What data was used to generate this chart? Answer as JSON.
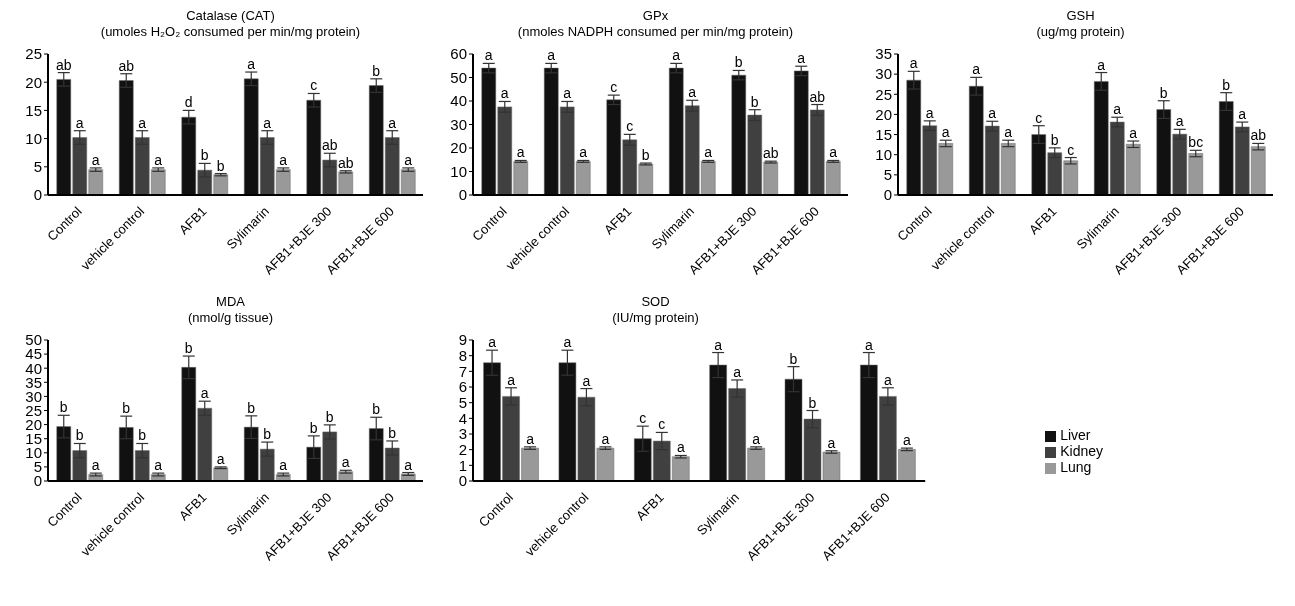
{
  "chart_data": [
    {
      "type": "bar",
      "title": "Catalase (CAT)",
      "subtitle": "(umoles H₂O₂ consumed per min/mg protein)",
      "categories": [
        "Control",
        "vehicle control",
        "AFB1",
        "Sylimarin",
        "AFB1+BJE 300",
        "AFB1+BJE 600"
      ],
      "ylim": [
        0,
        25
      ],
      "yticks": [
        0,
        5,
        10,
        15,
        20,
        25
      ],
      "grid": false,
      "series": [
        {
          "color": "#111111",
          "values": [
            20.5,
            20.3,
            13.8,
            20.6,
            16.8,
            19.4
          ],
          "errors": [
            1.2,
            1.2,
            1.2,
            1.2,
            1.2,
            1.2
          ],
          "value_labels": [
            "ab",
            "ab",
            "d",
            "a",
            "c",
            "b"
          ]
        },
        {
          "color": "#404040",
          "values": [
            10.2,
            10.2,
            4.4,
            10.2,
            6.2,
            10.2
          ],
          "errors": [
            1.2,
            1.2,
            1.2,
            1.2,
            1.2,
            1.2
          ],
          "value_labels": [
            "a",
            "a",
            "b",
            "a",
            "ab",
            "a"
          ]
        },
        {
          "color": "#999999",
          "values": [
            4.5,
            4.5,
            3.6,
            4.5,
            4.1,
            4.5
          ],
          "errors": [
            0.3,
            0.3,
            0.2,
            0.3,
            0.2,
            0.3
          ],
          "value_labels": [
            "a",
            "a",
            "b",
            "a",
            "ab",
            "a"
          ]
        }
      ]
    },
    {
      "type": "bar",
      "title": "GPx",
      "subtitle": "(nmoles NADPH consumed per min/mg protein)",
      "categories": [
        "Control",
        "vehicle control",
        "AFB1",
        "Sylimarin",
        "AFB1+BJE 300",
        "AFB1+BJE 600"
      ],
      "ylim": [
        0,
        60
      ],
      "yticks": [
        0,
        10,
        20,
        30,
        40,
        50,
        60
      ],
      "grid": false,
      "series": [
        {
          "color": "#111111",
          "values": [
            54,
            54,
            40.5,
            54,
            51,
            52.8
          ],
          "errors": [
            2,
            2,
            2,
            2,
            2,
            2
          ],
          "value_labels": [
            "a",
            "a",
            "c",
            "a",
            "b",
            "a"
          ]
        },
        {
          "color": "#404040",
          "values": [
            37.5,
            37.5,
            23.5,
            38,
            34,
            36.2
          ],
          "errors": [
            2.3,
            2.3,
            2.3,
            2.3,
            2.3,
            2.3
          ],
          "value_labels": [
            "a",
            "a",
            "c",
            "a",
            "b",
            "ab"
          ]
        },
        {
          "color": "#999999",
          "values": [
            14.3,
            14.3,
            13.2,
            14.3,
            14,
            14.3
          ],
          "errors": [
            0.4,
            0.4,
            0.4,
            0.4,
            0.4,
            0.4
          ],
          "value_labels": [
            "a",
            "a",
            "b",
            "a",
            "ab",
            "a"
          ]
        }
      ]
    },
    {
      "type": "bar",
      "title": "GSH",
      "subtitle": "(ug/mg protein)",
      "categories": [
        "Control",
        "vehicle control",
        "AFB1",
        "Sylimarin",
        "AFB1+BJE 300",
        "AFB1+BJE 600"
      ],
      "ylim": [
        0,
        35
      ],
      "yticks": [
        0,
        5,
        10,
        15,
        20,
        25,
        30,
        35
      ],
      "grid": false,
      "series": [
        {
          "color": "#111111",
          "values": [
            28.5,
            27,
            15,
            28.2,
            21.2,
            23.2
          ],
          "errors": [
            2.2,
            2.2,
            2.2,
            2.2,
            2.2,
            2.2
          ],
          "value_labels": [
            "a",
            "a",
            "c",
            "a",
            "b",
            "b"
          ]
        },
        {
          "color": "#404040",
          "values": [
            17.2,
            17.1,
            10.5,
            18.1,
            15.1,
            16.9
          ],
          "errors": [
            1.2,
            1.2,
            1.2,
            1.2,
            1.2,
            1.2
          ],
          "value_labels": [
            "a",
            "a",
            "b",
            "a",
            "a",
            "a"
          ]
        },
        {
          "color": "#999999",
          "values": [
            12.8,
            12.8,
            8.5,
            12.6,
            10.3,
            12
          ],
          "errors": [
            0.8,
            0.8,
            0.8,
            0.8,
            0.8,
            0.8
          ],
          "value_labels": [
            "a",
            "a",
            "c",
            "a",
            "bc",
            "ab"
          ]
        }
      ]
    },
    {
      "type": "bar",
      "title": "MDA",
      "subtitle": "(nmol/g tissue)",
      "categories": [
        "Control",
        "vehicle control",
        "AFB1",
        "Sylimarin",
        "AFB1+BJE 300",
        "AFB1+BJE 600"
      ],
      "ylim": [
        0,
        50
      ],
      "yticks": [
        0,
        5,
        10,
        15,
        20,
        25,
        30,
        35,
        40,
        45,
        50
      ],
      "grid": false,
      "series": [
        {
          "color": "#111111",
          "values": [
            19.3,
            19,
            40.3,
            19.1,
            12,
            18.6
          ],
          "errors": [
            4,
            4,
            4,
            4,
            4,
            4
          ],
          "value_labels": [
            "b",
            "b",
            "b",
            "b",
            "b",
            "b"
          ]
        },
        {
          "color": "#404040",
          "values": [
            10.8,
            10.8,
            25.8,
            11.3,
            17.4,
            11.7
          ],
          "errors": [
            2.5,
            2.5,
            2.5,
            2.5,
            2.5,
            2.5
          ],
          "value_labels": [
            "b",
            "b",
            "a",
            "b",
            "b",
            "b"
          ]
        },
        {
          "color": "#999999",
          "values": [
            2.3,
            2.3,
            4.7,
            2.3,
            3.3,
            2.5
          ],
          "errors": [
            0.5,
            0.5,
            0.3,
            0.5,
            0.5,
            0.5
          ],
          "value_labels": [
            "a",
            "a",
            "a",
            "a",
            "a",
            "a"
          ]
        }
      ]
    },
    {
      "type": "bar",
      "title": "SOD",
      "subtitle": "(IU/mg protein)",
      "categories": [
        "Control",
        "vehicle control",
        "AFB1",
        "Sylimarin",
        "AFB1+BJE 300",
        "AFB1+BJE 600"
      ],
      "ylim": [
        0,
        9
      ],
      "yticks": [
        0,
        1,
        2,
        3,
        4,
        5,
        6,
        7,
        8,
        9
      ],
      "grid": false,
      "legend": "right",
      "series": [
        {
          "name": "Liver",
          "color": "#111111",
          "values": [
            7.55,
            7.55,
            2.7,
            7.4,
            6.5,
            7.4
          ],
          "errors": [
            0.8,
            0.8,
            0.8,
            0.8,
            0.8,
            0.8
          ],
          "value_labels": [
            "a",
            "a",
            "c",
            "a",
            "b",
            "a"
          ]
        },
        {
          "name": "Kidney",
          "color": "#404040",
          "values": [
            5.4,
            5.35,
            2.55,
            5.9,
            3.95,
            5.4
          ],
          "errors": [
            0.55,
            0.55,
            0.55,
            0.55,
            0.55,
            0.55
          ],
          "value_labels": [
            "a",
            "a",
            "c",
            "a",
            "b",
            "a"
          ]
        },
        {
          "name": "Lung",
          "color": "#999999",
          "values": [
            2.1,
            2.1,
            1.55,
            2.1,
            1.85,
            2.02
          ],
          "errors": [
            0.08,
            0.08,
            0.08,
            0.08,
            0.08,
            0.08
          ],
          "value_labels": [
            "a",
            "a",
            "a",
            "a",
            "a",
            "a"
          ]
        }
      ]
    }
  ]
}
